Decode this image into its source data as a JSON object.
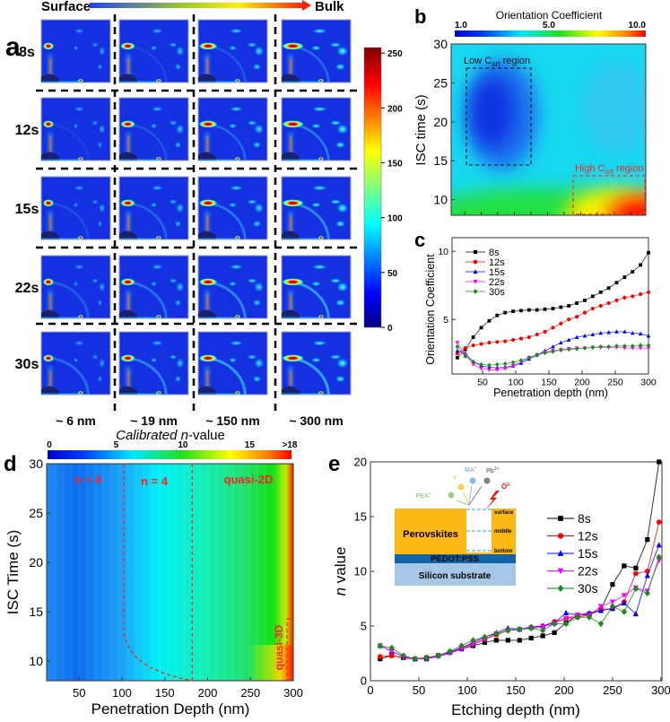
{
  "panel_labels": {
    "a": "a",
    "b": "b",
    "c": "c",
    "d": "d",
    "e": "e"
  },
  "colors": {
    "s8": "#000000",
    "s12": "#ff0000",
    "s15": "#0000ff",
    "s22": "#ff00ff",
    "s30": "#1a8a1a",
    "annotation_red": "#ff2020"
  },
  "chart_data": [
    {
      "panel": "a",
      "type": "heatmap",
      "title_left": "Surface",
      "title_right": "Bulk",
      "row_labels": [
        "8s",
        "12s",
        "15s",
        "22s",
        "30s"
      ],
      "column_labels": [
        "~ 6 nm",
        "~ 19 nm",
        "~ 150 nm",
        "~ 300 nm"
      ],
      "colorbar": {
        "range": [
          0,
          255
        ],
        "ticks": [
          "250",
          "200",
          "150",
          "100",
          "50",
          "0"
        ],
        "tick_values": [
          250,
          200,
          150,
          100,
          50,
          0
        ]
      }
    },
    {
      "panel": "b",
      "type": "heatmap",
      "colorbar_title": "Orientation Coefficient",
      "colorbar_ticks": [
        "1.0",
        "5.0",
        "10.0"
      ],
      "ylabel": "ISC time (s)",
      "yticks": [
        10,
        15,
        20,
        25,
        30
      ],
      "ylim": [
        8,
        30
      ],
      "annotations": {
        "low_main": "Low C",
        "low_sub": "ort",
        "low_tail": " region",
        "high_main": "High C",
        "high_sub": "ort",
        "high_tail": " region"
      }
    },
    {
      "panel": "c",
      "type": "line",
      "xlabel": "Penetration depth (nm)",
      "ylabel": "Orientation Coefficient",
      "xlim": [
        4,
        300
      ],
      "ylim": [
        1,
        11
      ],
      "xticks": [
        50,
        100,
        150,
        200,
        250,
        300
      ],
      "yticks": [
        5,
        10
      ],
      "legend": "top-left",
      "x": [
        12,
        24,
        36,
        48,
        60,
        72,
        84,
        96,
        108,
        120,
        132,
        144,
        156,
        168,
        180,
        192,
        204,
        216,
        228,
        240,
        252,
        264,
        276,
        288,
        300
      ],
      "series": [
        {
          "name": "8s",
          "marker": "square",
          "color_key": "s8",
          "values": [
            2.2,
            2.8,
            3.7,
            4.4,
            4.9,
            5.3,
            5.5,
            5.6,
            5.65,
            5.7,
            5.7,
            5.75,
            5.8,
            5.9,
            6.0,
            6.2,
            6.4,
            6.7,
            7.0,
            7.3,
            7.7,
            8.1,
            8.5,
            9.0,
            9.9
          ]
        },
        {
          "name": "12s",
          "marker": "circle",
          "color_key": "s12",
          "values": [
            2.5,
            2.9,
            3.1,
            3.2,
            3.3,
            3.35,
            3.4,
            3.5,
            3.6,
            3.7,
            3.9,
            4.1,
            4.4,
            4.7,
            5.0,
            5.2,
            5.5,
            5.8,
            6.0,
            6.2,
            6.4,
            6.6,
            6.7,
            6.85,
            7.0
          ]
        },
        {
          "name": "15s",
          "marker": "triangle-up",
          "color_key": "s15",
          "values": [
            2.7,
            2.5,
            1.9,
            1.6,
            1.5,
            1.45,
            1.5,
            1.6,
            1.8,
            2.1,
            2.4,
            2.7,
            3.0,
            3.3,
            3.5,
            3.7,
            3.8,
            3.9,
            4.0,
            4.05,
            4.1,
            4.1,
            4.0,
            3.95,
            3.8
          ]
        },
        {
          "name": "22s",
          "marker": "triangle-down",
          "color_key": "s22",
          "values": [
            3.3,
            2.4,
            1.7,
            1.4,
            1.3,
            1.3,
            1.4,
            1.6,
            1.9,
            2.2,
            2.4,
            2.6,
            2.7,
            2.8,
            2.85,
            2.9,
            2.9,
            2.95,
            2.95,
            2.95,
            2.95,
            2.9,
            2.9,
            2.9,
            2.9
          ]
        },
        {
          "name": "30s",
          "marker": "diamond",
          "color_key": "s30",
          "values": [
            3.0,
            2.3,
            1.9,
            1.7,
            1.65,
            1.7,
            1.75,
            1.85,
            2.0,
            2.2,
            2.4,
            2.55,
            2.65,
            2.75,
            2.8,
            2.85,
            2.9,
            2.95,
            3.0,
            3.0,
            3.05,
            3.05,
            3.05,
            3.1,
            3.1
          ]
        }
      ]
    },
    {
      "panel": "d",
      "type": "heatmap",
      "colorbar_title_pre": "Calibrated ",
      "colorbar_title_n": "n",
      "colorbar_title_post": "-value",
      "colorbar_ticks": [
        {
          "label": "0",
          "value": 0
        },
        {
          "label": "5",
          "value": 5
        },
        {
          "label": "10",
          "value": 10
        },
        {
          "label": "15",
          "value": 15
        },
        {
          "label": ">18",
          "value": 18
        }
      ],
      "xlabel": "Penetration Depth (nm)",
      "ylabel": "ISC Time (s)",
      "xlim": [
        12,
        300
      ],
      "ylim": [
        8,
        30
      ],
      "xticks": [
        50,
        100,
        150,
        200,
        250,
        300
      ],
      "yticks": [
        10,
        15,
        20,
        25,
        30
      ],
      "boundaries_nm": [
        102,
        182
      ],
      "region_labels": [
        "n < 4",
        "n = 4",
        "quasi-2D",
        "quasi-3D"
      ]
    },
    {
      "panel": "e",
      "type": "line",
      "xlabel": "Etching depth (nm)",
      "ylabel_n": "n",
      "ylabel_tail": " value",
      "xlim": [
        0,
        301
      ],
      "ylim": [
        0,
        20
      ],
      "xticks": [
        0,
        50,
        100,
        150,
        200,
        250,
        300
      ],
      "yticks": [
        0,
        5,
        10,
        15,
        20
      ],
      "legend": "center-right",
      "x": [
        10,
        22,
        34,
        46,
        58,
        70,
        82,
        94,
        106,
        118,
        130,
        142,
        154,
        166,
        178,
        190,
        202,
        214,
        226,
        238,
        250,
        262,
        274,
        286,
        298
      ],
      "series": [
        {
          "name": "8s",
          "marker": "square",
          "color_key": "s8",
          "values": [
            2.0,
            2.3,
            2.1,
            2.0,
            2.1,
            2.3,
            2.6,
            2.9,
            3.2,
            3.5,
            3.7,
            3.7,
            3.7,
            3.9,
            4.1,
            4.4,
            5.3,
            6.0,
            6.1,
            6.5,
            8.8,
            10.5,
            10.3,
            12.9,
            20.0
          ]
        },
        {
          "name": "12s",
          "marker": "circle",
          "color_key": "s12",
          "values": [
            2.2,
            2.3,
            2.1,
            2.0,
            2.1,
            2.3,
            2.6,
            3.0,
            3.4,
            3.8,
            4.2,
            4.6,
            4.7,
            4.9,
            5.0,
            5.4,
            5.7,
            5.8,
            6.0,
            6.5,
            6.6,
            7.2,
            9.8,
            10.0,
            14.5
          ]
        },
        {
          "name": "15s",
          "marker": "triangle-up",
          "color_key": "s15",
          "values": [
            3.2,
            2.7,
            2.2,
            2.0,
            2.0,
            2.3,
            2.6,
            3.0,
            3.5,
            4.0,
            4.4,
            4.8,
            4.7,
            4.9,
            5.0,
            5.3,
            6.2,
            6.0,
            6.2,
            6.4,
            6.6,
            7.1,
            6.1,
            9.6,
            12.4
          ]
        },
        {
          "name": "22s",
          "marker": "triangle-down",
          "color_key": "s22",
          "values": [
            3.2,
            2.7,
            2.2,
            2.0,
            2.0,
            2.2,
            2.5,
            2.9,
            3.3,
            3.8,
            4.3,
            4.6,
            4.7,
            4.8,
            4.9,
            5.2,
            5.7,
            6.0,
            6.0,
            6.8,
            7.2,
            7.8,
            8.5,
            8.2,
            11.0
          ]
        },
        {
          "name": "30s",
          "marker": "diamond",
          "color_key": "s30",
          "values": [
            3.2,
            3.0,
            2.3,
            2.0,
            2.1,
            2.3,
            2.7,
            3.2,
            3.7,
            4.0,
            4.3,
            4.6,
            4.7,
            4.8,
            4.6,
            5.2,
            5.2,
            5.8,
            5.8,
            5.2,
            6.8,
            6.3,
            8.4,
            8.0,
            11.3
          ]
        }
      ],
      "inset": {
        "layers": [
          "Perovskites",
          "PEDOT:PSS",
          "Silicon substrate"
        ],
        "depth_labels": [
          "surface",
          "middle",
          "bottom"
        ],
        "ions": [
          "PEA",
          "I",
          "MA",
          "Pb",
          "O"
        ],
        "ion_charges": [
          "+",
          "-",
          "+",
          "2+",
          "2-"
        ]
      }
    }
  ]
}
